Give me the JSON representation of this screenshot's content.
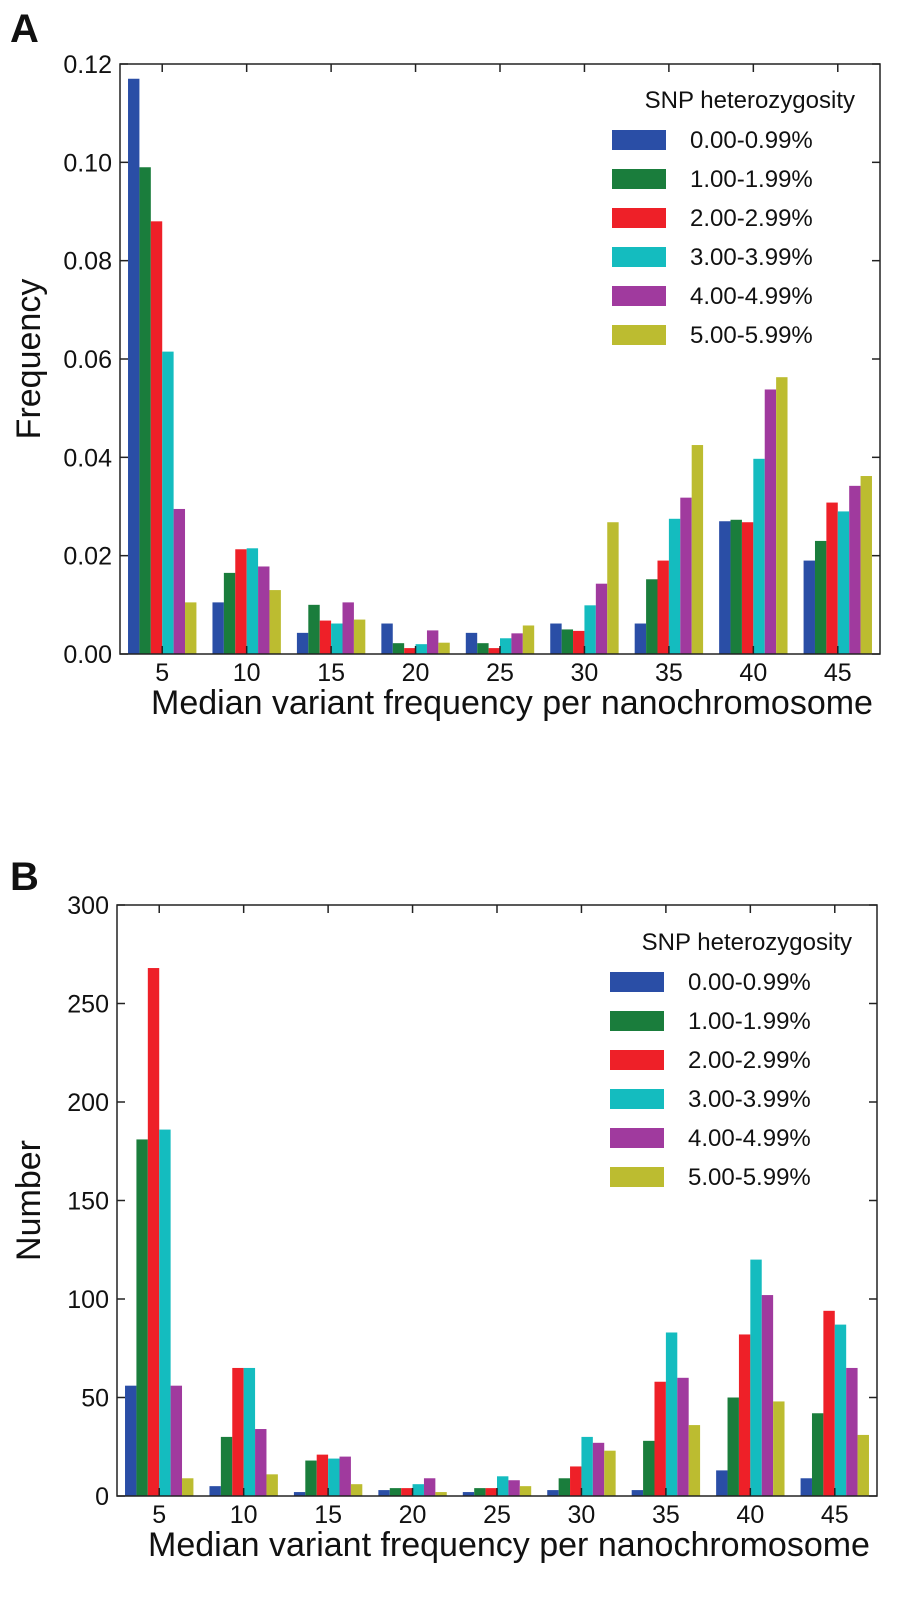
{
  "figure": {
    "colors": {
      "s0": "#2a4ea6",
      "s1": "#1a7d3c",
      "s2": "#ee2028",
      "s3": "#14bcbf",
      "s4": "#a03a9e",
      "s5": "#bcbc30"
    }
  },
  "chart_data": [
    {
      "type": "bar",
      "panel": "A",
      "title": "",
      "xlabel": "Median variant frequency per nanochromosome",
      "ylabel": "Frequency",
      "ylim": [
        0,
        0.12
      ],
      "yticks": [
        "0.00",
        "0.02",
        "0.04",
        "0.06",
        "0.08",
        "0.10",
        "0.12"
      ],
      "grid": false,
      "legend_title": "SNP heterozygosity",
      "legend_position": "top-right",
      "categories": [
        "5",
        "10",
        "15",
        "20",
        "25",
        "30",
        "35",
        "40",
        "45"
      ],
      "series": [
        {
          "name": "0.00-0.99%",
          "color": "#2a4ea6",
          "values": [
            0.117,
            0.0105,
            0.0043,
            0.0062,
            0.0043,
            0.0062,
            0.0062,
            0.027,
            0.019
          ]
        },
        {
          "name": "1.00-1.99%",
          "color": "#1a7d3c",
          "values": [
            0.099,
            0.0165,
            0.01,
            0.0022,
            0.0022,
            0.005,
            0.0152,
            0.0273,
            0.023
          ]
        },
        {
          "name": "2.00-2.99%",
          "color": "#ee2028",
          "values": [
            0.088,
            0.0213,
            0.0068,
            0.0012,
            0.0012,
            0.0047,
            0.019,
            0.0268,
            0.0308
          ]
        },
        {
          "name": "3.00-3.99%",
          "color": "#14bcbf",
          "values": [
            0.0615,
            0.0215,
            0.0062,
            0.002,
            0.0032,
            0.0099,
            0.0275,
            0.0397,
            0.029
          ]
        },
        {
          "name": "4.00-4.99%",
          "color": "#a03a9e",
          "values": [
            0.0295,
            0.0178,
            0.0105,
            0.0048,
            0.0042,
            0.0143,
            0.0318,
            0.0538,
            0.0342
          ]
        },
        {
          "name": "5.00-5.99%",
          "color": "#bcbc30",
          "values": [
            0.0105,
            0.013,
            0.007,
            0.0023,
            0.0058,
            0.0268,
            0.0425,
            0.0563,
            0.0362
          ]
        }
      ]
    },
    {
      "type": "bar",
      "panel": "B",
      "title": "",
      "xlabel": "Median variant frequency per nanochromosome",
      "ylabel": "Number",
      "ylim": [
        0,
        300
      ],
      "yticks": [
        "0",
        "50",
        "100",
        "150",
        "200",
        "250",
        "300"
      ],
      "grid": false,
      "legend_title": "SNP heterozygosity",
      "legend_position": "top-right",
      "categories": [
        "5",
        "10",
        "15",
        "20",
        "25",
        "30",
        "35",
        "40",
        "45"
      ],
      "series": [
        {
          "name": "0.00-0.99%",
          "color": "#2a4ea6",
          "values": [
            56,
            5,
            2,
            3,
            2,
            3,
            3,
            13,
            9
          ]
        },
        {
          "name": "1.00-1.99%",
          "color": "#1a7d3c",
          "values": [
            181,
            30,
            18,
            4,
            4,
            9,
            28,
            50,
            42
          ]
        },
        {
          "name": "2.00-2.99%",
          "color": "#ee2028",
          "values": [
            268,
            65,
            21,
            4,
            4,
            15,
            58,
            82,
            94
          ]
        },
        {
          "name": "3.00-3.99%",
          "color": "#14bcbf",
          "values": [
            186,
            65,
            19,
            6,
            10,
            30,
            83,
            120,
            87
          ]
        },
        {
          "name": "4.00-4.99%",
          "color": "#a03a9e",
          "values": [
            56,
            34,
            20,
            9,
            8,
            27,
            60,
            102,
            65
          ]
        },
        {
          "name": "5.00-5.99%",
          "color": "#bcbc30",
          "values": [
            9,
            11,
            6,
            2,
            5,
            23,
            36,
            48,
            31
          ]
        }
      ]
    }
  ]
}
